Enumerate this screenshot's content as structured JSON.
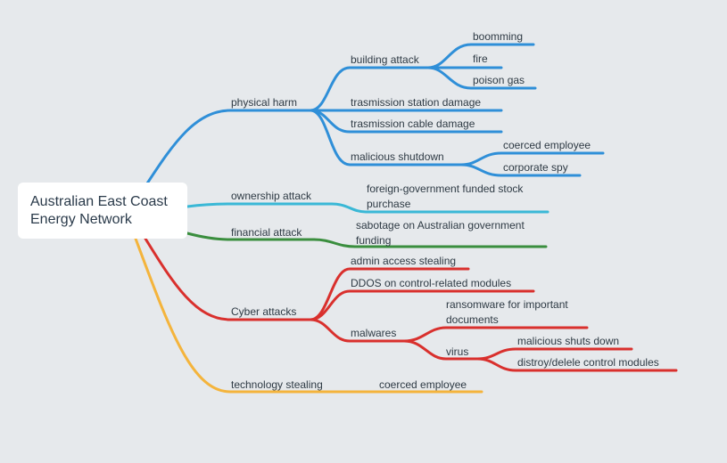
{
  "root": {
    "line1": "Australian East Coast",
    "line2": "Energy Network"
  },
  "colors": {
    "background": "#e6e9ec",
    "physical": "#2f8fd8",
    "ownership": "#3ab8d6",
    "financial": "#3a8e3e",
    "cyber": "#d9302d",
    "technology": "#f4b43c"
  },
  "branches": {
    "physical": {
      "label": "physical harm",
      "building_attack": {
        "label": "building attack",
        "children": [
          "boomming",
          "fire",
          "poison gas"
        ]
      },
      "station_damage": "trasmission station damage",
      "cable_damage": "trasmission cable damage",
      "shutdown": {
        "label": "malicious shutdown",
        "children": [
          "coerced employee",
          "corporate spy"
        ]
      }
    },
    "ownership": {
      "label": "ownership attack",
      "child": "foreign-government funded stock purchase"
    },
    "financial": {
      "label": "financial attack",
      "child": "sabotage on Australian government funding"
    },
    "cyber": {
      "label": "Cyber attacks",
      "admin": "admin access stealing",
      "ddos": "DDOS on control-related modules",
      "malwares": {
        "label": "malwares",
        "ransomware": "ransomware for important documents",
        "virus": {
          "label": "virus",
          "children": [
            "malicious shuts down",
            "distroy/delele control modules"
          ]
        }
      }
    },
    "technology": {
      "label": "technology stealing",
      "child": "coerced employee"
    }
  }
}
